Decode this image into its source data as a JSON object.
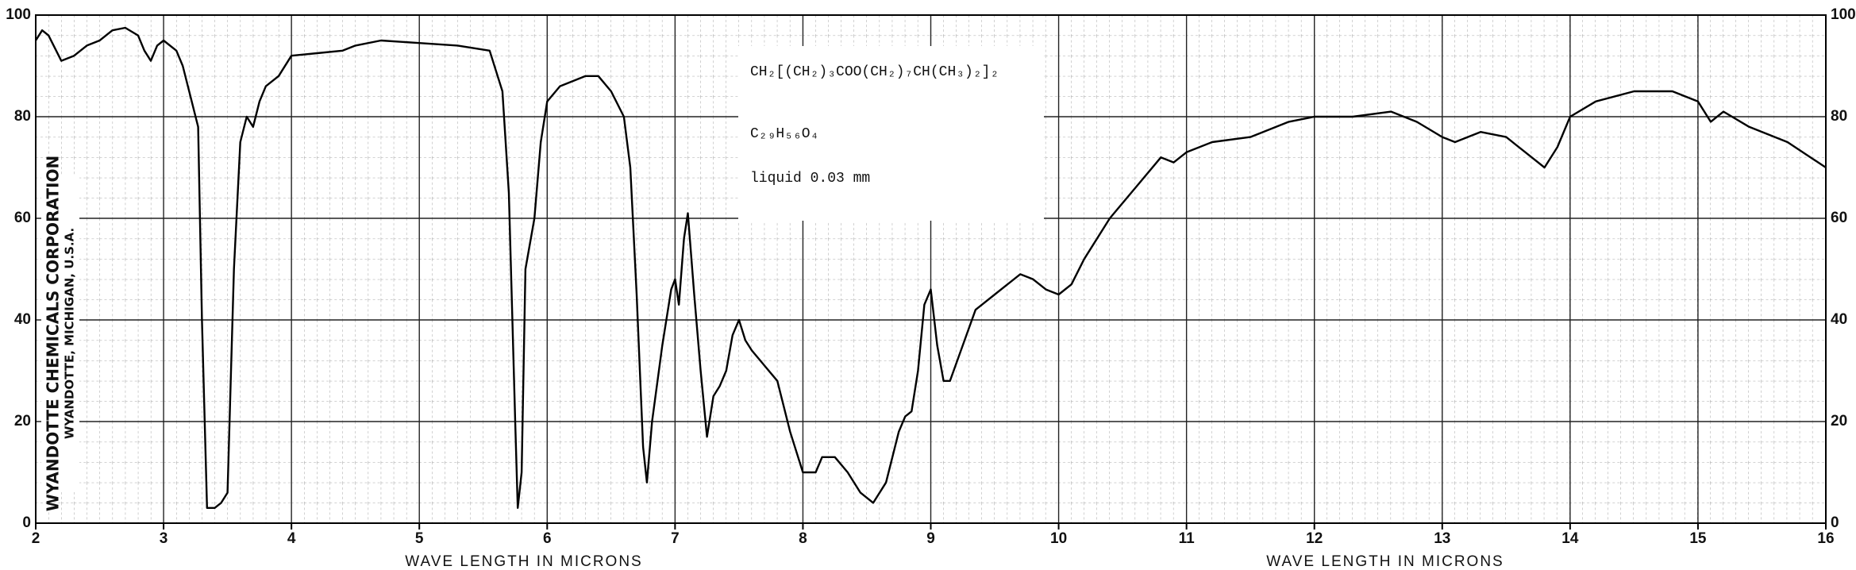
{
  "chart_data": {
    "type": "line",
    "xlabel": "WAVE LENGTH IN MICRONS",
    "annotations": [
      "CH₂[(CH₂)₃COO(CH₂)₇CH(CH₃)₂]₂",
      "C₂₉H₅₆O₄",
      "liquid  0.03 mm",
      "WYANDOTTE CHEMICALS CORPORATION",
      "WYANDOTTE, MICHIGAN, U.S.A."
    ],
    "x": [
      2.0,
      2.05,
      2.1,
      2.2,
      2.3,
      2.4,
      2.5,
      2.6,
      2.7,
      2.8,
      2.85,
      2.9,
      2.95,
      3.0,
      3.1,
      3.15,
      3.2,
      3.27,
      3.3,
      3.34,
      3.4,
      3.45,
      3.5,
      3.55,
      3.6,
      3.65,
      3.7,
      3.75,
      3.8,
      3.9,
      4.0,
      4.2,
      4.4,
      4.5,
      4.7,
      5.0,
      5.3,
      5.55,
      5.65,
      5.7,
      5.75,
      5.77,
      5.8,
      5.83,
      5.9,
      5.95,
      6.0,
      6.1,
      6.3,
      6.4,
      6.5,
      6.6,
      6.65,
      6.7,
      6.75,
      6.78,
      6.82,
      6.9,
      6.97,
      7.0,
      7.03,
      7.07,
      7.1,
      7.15,
      7.2,
      7.25,
      7.3,
      7.35,
      7.4,
      7.45,
      7.5,
      7.55,
      7.6,
      7.7,
      7.8,
      7.9,
      8.0,
      8.1,
      8.15,
      8.25,
      8.35,
      8.45,
      8.55,
      8.65,
      8.75,
      8.8,
      8.85,
      8.9,
      8.95,
      9.0,
      9.05,
      9.1,
      9.15,
      9.25,
      9.35,
      9.5,
      9.6,
      9.7,
      9.8,
      9.9,
      10.0,
      10.1,
      10.2,
      10.4,
      10.6,
      10.8,
      10.9,
      11.0,
      11.2,
      11.5,
      11.8,
      12.0,
      12.3,
      12.6,
      12.8,
      13.0,
      13.1,
      13.3,
      13.5,
      13.7,
      13.8,
      13.9,
      14.0,
      14.2,
      14.5,
      14.8,
      15.0,
      15.1,
      15.2,
      15.4,
      15.7,
      16.0
    ],
    "series": [
      {
        "color": "#000000",
        "values": [
          95,
          97,
          96,
          91,
          92,
          94,
          95,
          97,
          97.5,
          96,
          93,
          91,
          94,
          95,
          93,
          90,
          85,
          78,
          40,
          3,
          3,
          4,
          6,
          50,
          75,
          80,
          78,
          83,
          86,
          88,
          92,
          92.5,
          93,
          94,
          95,
          94.5,
          94,
          93,
          85,
          65,
          20,
          3,
          10,
          50,
          60,
          75,
          83,
          86,
          88,
          88,
          85,
          80,
          70,
          45,
          15,
          8,
          20,
          35,
          46,
          48,
          43,
          56,
          61,
          45,
          30,
          17,
          25,
          27,
          30,
          37,
          40,
          36,
          34,
          31,
          28,
          18,
          10,
          10,
          13,
          13,
          10,
          6,
          4,
          8,
          18,
          21,
          22,
          30,
          43,
          46,
          35,
          28,
          28,
          35,
          42,
          45,
          47,
          49,
          48,
          46,
          45,
          47,
          52,
          60,
          66,
          72,
          71,
          73,
          75,
          76,
          79,
          80,
          80,
          81,
          79,
          76,
          75,
          77,
          76,
          72,
          70,
          74,
          80,
          83,
          85,
          85,
          83,
          79,
          81,
          78,
          75,
          70
        ]
      }
    ],
    "xlim": [
      2,
      16
    ],
    "ylim": [
      0,
      100
    ],
    "xticks": [
      2,
      3,
      4,
      5,
      6,
      7,
      8,
      9,
      10,
      11,
      12,
      13,
      14,
      15,
      16
    ],
    "yticks": [
      0,
      20,
      40,
      60,
      80,
      100
    ],
    "grid": true
  }
}
